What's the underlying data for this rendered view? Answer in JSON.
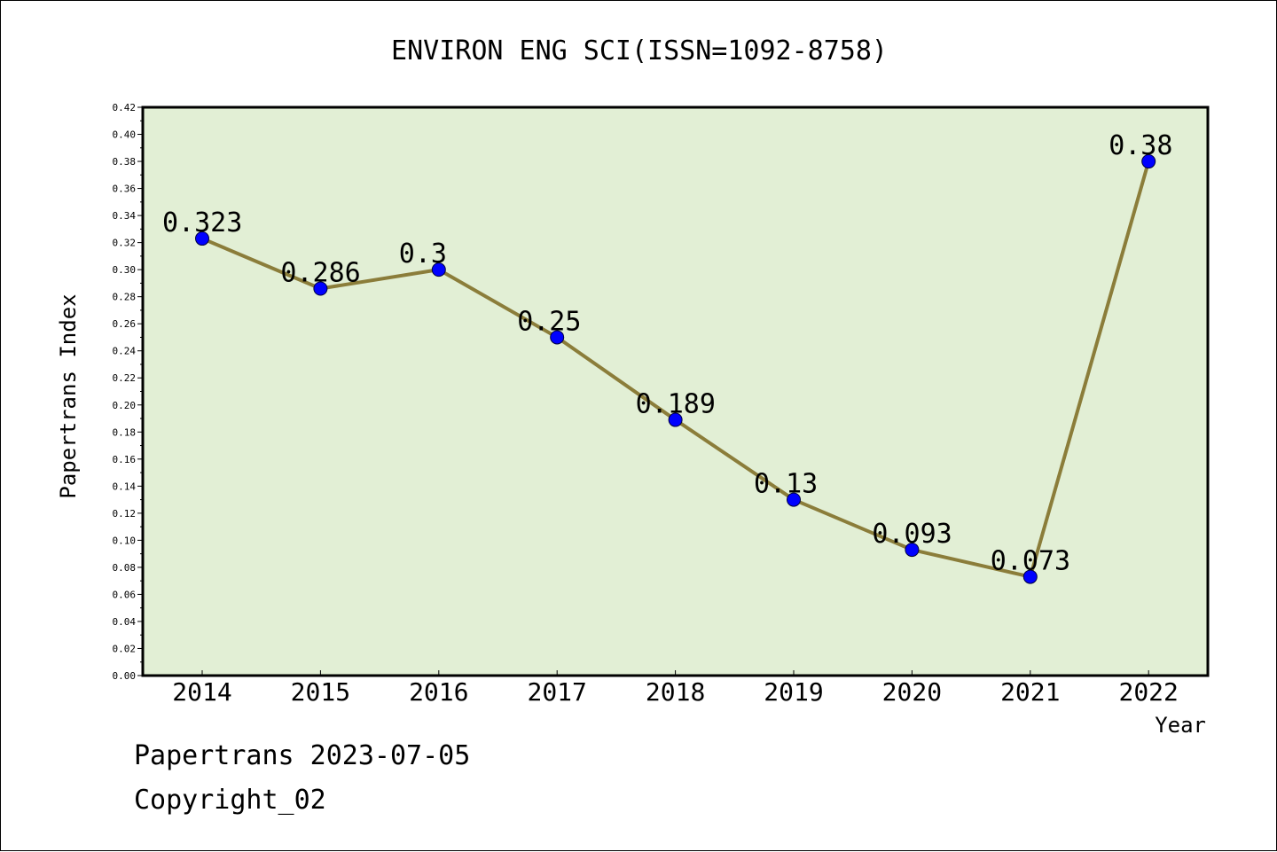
{
  "chart_data": {
    "type": "line",
    "title": "ENVIRON ENG SCI(ISSN=1092-8758)",
    "xlabel": "Year",
    "ylabel": "Papertrans Index",
    "categories": [
      "2014",
      "2015",
      "2016",
      "2017",
      "2018",
      "2019",
      "2020",
      "2021",
      "2022"
    ],
    "series": [
      {
        "values": [
          0.323,
          0.286,
          0.3,
          0.25,
          0.189,
          0.13,
          0.093,
          0.073,
          0.38
        ],
        "data_labels": [
          "0.323",
          "0.286",
          "0.3",
          "0.25",
          "0.189",
          "0.13",
          "0.093",
          "0.073",
          "0.38"
        ]
      }
    ],
    "ylim": [
      0,
      0.42
    ],
    "yticks": [
      "0.00",
      "0.02",
      "0.04",
      "0.06",
      "0.08",
      "0.10",
      "0.12",
      "0.14",
      "0.16",
      "0.18",
      "0.20",
      "0.22",
      "0.24",
      "0.26",
      "0.28",
      "0.30",
      "0.32",
      "0.34",
      "0.36",
      "0.38",
      "0.40",
      "0.42"
    ],
    "grid": false,
    "colors": {
      "plot_background": "#e2efd5",
      "line": "#8b7d3a",
      "marker": "#0000ff"
    }
  },
  "footer": {
    "source": "Papertrans 2023-07-05",
    "copyright": "Copyright_02"
  }
}
